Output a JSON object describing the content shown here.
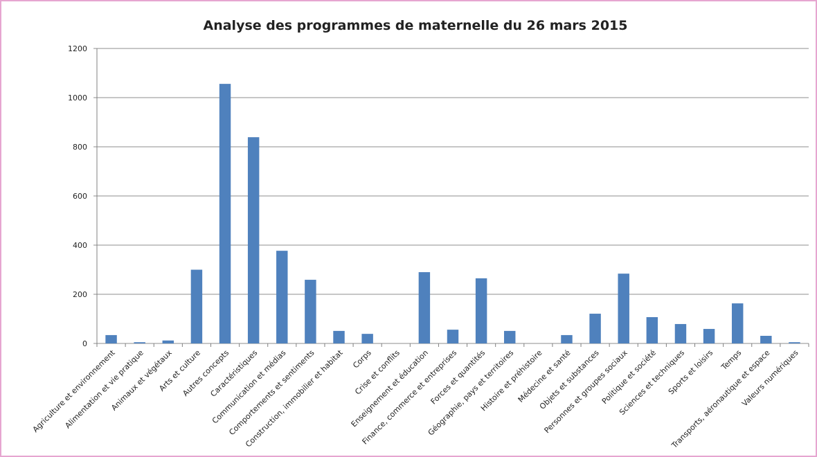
{
  "chart_data": {
    "type": "bar",
    "title": "Analyse des programmes de maternelle du 26 mars 2015",
    "categories": [
      "Agriculture et environnement",
      "Alimentation et vie pratique",
      "Animaux et végétaux",
      "Arts et culture",
      "Autres concepts",
      "Caractéristiques",
      "Communication et médias",
      "Comportements et sentiments",
      "Construction, immobilier et habitat",
      "Corps",
      "Crise et conflits",
      "Enseignement et éducation",
      "Finance, commerce et entreprises",
      "Forces et quantités",
      "Géographie, pays et territoires",
      "Histoire et préhistoire",
      "Médecine et santé",
      "Objets et substances",
      "Personnes et groupes sociaux",
      "Politique et société",
      "Sciences et techniques",
      "Sports et loisirs",
      "Temps",
      "Transports, aéronautique et espace",
      "Valeurs numériques"
    ],
    "values": [
      34,
      5,
      12,
      300,
      1056,
      839,
      377,
      259,
      51,
      39,
      0,
      290,
      56,
      265,
      51,
      0,
      34,
      121,
      284,
      107,
      79,
      59,
      163,
      31,
      5
    ],
    "color": "#4f81bd",
    "ylim": [
      0,
      1200
    ],
    "yticks": [
      0,
      200,
      400,
      600,
      800,
      1000,
      1200
    ],
    "grid": true
  }
}
